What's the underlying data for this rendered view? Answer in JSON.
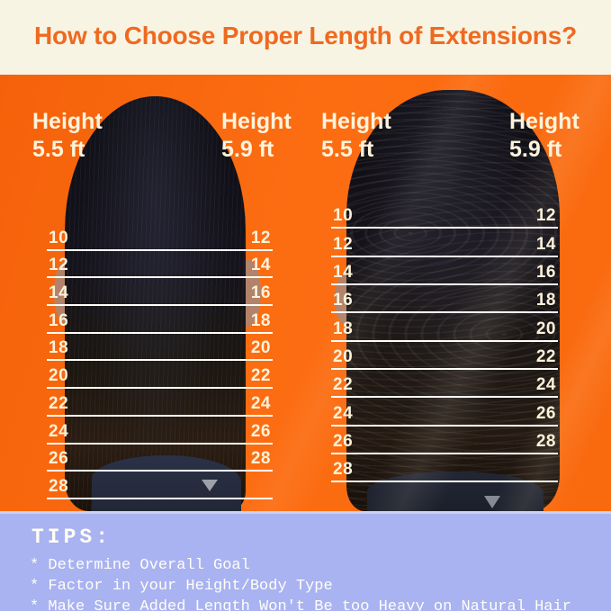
{
  "header": {
    "title": "How to Choose Proper Length of Extensions?"
  },
  "panels": [
    {
      "name": "straight-hair-panel",
      "left_height": {
        "label": "Height",
        "value": "5.5 ft"
      },
      "right_height": {
        "label": "Height",
        "value": "5.9 ft"
      },
      "left_scale": [
        "10",
        "12",
        "14",
        "16",
        "18",
        "20",
        "22",
        "24",
        "26",
        "28"
      ],
      "right_scale": [
        "12",
        "14",
        "16",
        "18",
        "20",
        "22",
        "24",
        "26",
        "28"
      ]
    },
    {
      "name": "wavy-hair-panel",
      "left_height": {
        "label": "Height",
        "value": "5.5 ft"
      },
      "right_height": {
        "label": "Height",
        "value": "5.9 ft"
      },
      "left_scale": [
        "10",
        "12",
        "14",
        "16",
        "18",
        "20",
        "22",
        "24",
        "26",
        "28"
      ],
      "right_scale": [
        "12",
        "14",
        "16",
        "18",
        "20",
        "22",
        "24",
        "26",
        "28"
      ]
    }
  ],
  "tips": {
    "heading": "TIPS:",
    "items": [
      "* Determine Overall Goal",
      "* Factor in your Height/Body Type",
      "* Make Sure Added Length Won't Be too Heavy on Natural Hair"
    ]
  },
  "colors": {
    "background_orange": "#FB6A10",
    "header_cream": "#F8F4E3",
    "title_orange": "#EE6A21",
    "tips_lavender": "#A9B3F1",
    "label_cream": "#FDF3DC",
    "line_white": "#FFFEF8"
  }
}
